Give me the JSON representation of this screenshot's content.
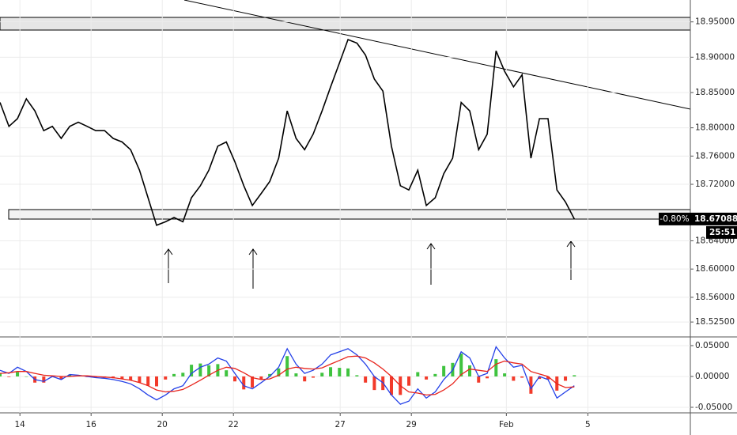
{
  "chart_data": [
    {
      "type": "line",
      "x": [
        -0.56,
        -0.31,
        -0.07,
        0.18,
        0.42,
        0.67,
        0.91,
        1.16,
        1.4,
        1.64,
        1.89,
        2.13,
        2.38,
        2.62,
        2.87,
        3.11,
        3.36,
        3.6,
        3.84,
        4.09,
        4.33,
        4.58,
        4.82,
        5.07,
        5.31,
        5.56,
        5.8,
        6.04,
        6.29,
        6.53,
        6.78,
        7.02,
        7.27,
        7.51,
        7.76,
        8.0,
        8.24,
        8.49,
        8.73,
        8.98,
        9.22,
        9.47,
        9.71,
        9.96,
        10.2,
        10.44,
        10.69,
        10.93,
        11.18,
        11.42,
        11.67,
        11.91,
        12.16,
        12.4,
        12.64,
        12.89,
        13.13,
        13.38,
        13.62,
        13.87,
        14.11,
        14.36,
        14.6,
        14.84,
        15.09,
        15.33,
        15.58
      ],
      "values": [
        18.836,
        18.802,
        18.813,
        18.841,
        18.824,
        18.796,
        18.802,
        18.785,
        18.802,
        18.808,
        18.802,
        18.796,
        18.796,
        18.785,
        18.78,
        18.769,
        18.74,
        18.701,
        18.662,
        18.667,
        18.673,
        18.667,
        18.701,
        18.718,
        18.74,
        18.774,
        18.78,
        18.752,
        18.718,
        18.69,
        18.707,
        18.724,
        18.757,
        18.824,
        18.785,
        18.769,
        18.791,
        18.824,
        18.858,
        18.892,
        18.925,
        18.92,
        18.903,
        18.869,
        18.852,
        18.774,
        18.718,
        18.712,
        18.74,
        18.69,
        18.701,
        18.735,
        18.757,
        18.836,
        18.824,
        18.769,
        18.791,
        18.909,
        18.88,
        18.858,
        18.875,
        18.757,
        18.813,
        18.813,
        18.712,
        18.695,
        18.67088
      ],
      "color": "#000000",
      "xlim": [
        -0.56,
        18.84
      ],
      "xticks": [
        {
          "value": 0,
          "label": "14"
        },
        {
          "value": 2,
          "label": "16"
        },
        {
          "value": 4,
          "label": "20"
        },
        {
          "value": 6,
          "label": "22"
        },
        {
          "value": 9,
          "label": "27"
        },
        {
          "value": 11,
          "label": "29"
        },
        {
          "value": 13.67,
          "label": "Feb"
        },
        {
          "value": 15.96,
          "label": "5"
        }
      ],
      "ylim": [
        18.505,
        18.981
      ],
      "yticks": [
        {
          "value": 18.95,
          "label": "18.95000"
        },
        {
          "value": 18.9,
          "label": "18.90000"
        },
        {
          "value": 18.85,
          "label": "18.85000"
        },
        {
          "value": 18.8,
          "label": "18.80000"
        },
        {
          "value": 18.76,
          "label": "18.76000"
        },
        {
          "value": 18.72,
          "label": "18.72000"
        },
        {
          "value": 18.64,
          "label": "18.64000"
        },
        {
          "value": 18.6,
          "label": "18.60000"
        },
        {
          "value": 18.56,
          "label": "18.56000"
        },
        {
          "value": 18.525,
          "label": "18.52500"
        }
      ],
      "grid": true,
      "last_price": 18.67088,
      "change_label": "-0.80%",
      "countdown": "25:51"
    },
    {
      "type": "macd",
      "x": [
        -0.56,
        -0.31,
        -0.07,
        0.18,
        0.42,
        0.67,
        0.91,
        1.16,
        1.4,
        1.64,
        1.89,
        2.13,
        2.38,
        2.62,
        2.87,
        3.11,
        3.36,
        3.6,
        3.84,
        4.09,
        4.33,
        4.58,
        4.82,
        5.07,
        5.31,
        5.56,
        5.8,
        6.04,
        6.29,
        6.53,
        6.78,
        7.02,
        7.27,
        7.51,
        7.76,
        8.0,
        8.24,
        8.49,
        8.73,
        8.98,
        9.22,
        9.47,
        9.71,
        9.96,
        10.2,
        10.44,
        10.69,
        10.93,
        11.18,
        11.42,
        11.67,
        11.91,
        12.16,
        12.4,
        12.64,
        12.89,
        13.13,
        13.38,
        13.62,
        13.87,
        14.11,
        14.36,
        14.6,
        14.84,
        15.09,
        15.33,
        15.58
      ],
      "series": [
        {
          "color": "#2340e8",
          "values": [
            0.01,
            0.005,
            0.015,
            0.008,
            -0.005,
            -0.008,
            0.0,
            -0.005,
            0.003,
            0.002,
            0.0,
            -0.002,
            -0.003,
            -0.005,
            -0.008,
            -0.012,
            -0.02,
            -0.03,
            -0.038,
            -0.03,
            -0.02,
            -0.015,
            0.005,
            0.015,
            0.02,
            0.03,
            0.025,
            0.005,
            -0.015,
            -0.02,
            -0.01,
            0.0,
            0.015,
            0.045,
            0.02,
            0.005,
            0.01,
            0.02,
            0.035,
            0.04,
            0.045,
            0.035,
            0.02,
            0.0,
            -0.01,
            -0.03,
            -0.045,
            -0.04,
            -0.02,
            -0.035,
            -0.025,
            -0.005,
            0.01,
            0.04,
            0.03,
            0.0,
            0.005,
            0.048,
            0.03,
            0.015,
            0.018,
            -0.02,
            0.0,
            -0.005,
            -0.035,
            -0.025,
            -0.015
          ]
        },
        {
          "color": "#e8241c",
          "values": [
            0.005,
            0.006,
            0.008,
            0.008,
            0.005,
            0.002,
            0.001,
            0.0,
            0.0,
            0.001,
            0.001,
            0.0,
            -0.001,
            -0.002,
            -0.004,
            -0.006,
            -0.01,
            -0.015,
            -0.022,
            -0.025,
            -0.024,
            -0.021,
            -0.014,
            -0.006,
            0.002,
            0.01,
            0.015,
            0.013,
            0.006,
            -0.002,
            -0.005,
            -0.004,
            0.002,
            0.012,
            0.015,
            0.013,
            0.012,
            0.014,
            0.02,
            0.026,
            0.032,
            0.033,
            0.03,
            0.022,
            0.012,
            0.0,
            -0.015,
            -0.025,
            -0.027,
            -0.03,
            -0.029,
            -0.022,
            -0.012,
            0.003,
            0.012,
            0.01,
            0.008,
            0.02,
            0.025,
            0.022,
            0.02,
            0.008,
            0.004,
            0.0,
            -0.012,
            -0.018,
            -0.017
          ]
        }
      ],
      "histogram": {
        "positive_color": "#3fc33f",
        "negative_color": "#f23a2a",
        "values": [
          0.005,
          -0.001,
          0.007,
          0.0,
          -0.01,
          -0.01,
          -0.001,
          -0.005,
          0.003,
          0.001,
          -0.001,
          -0.002,
          -0.002,
          -0.003,
          -0.004,
          -0.006,
          -0.01,
          -0.015,
          -0.016,
          -0.005,
          0.004,
          0.006,
          0.019,
          0.021,
          0.018,
          0.02,
          0.01,
          -0.008,
          -0.021,
          -0.018,
          -0.005,
          0.004,
          0.013,
          0.033,
          0.005,
          -0.008,
          -0.002,
          0.006,
          0.015,
          0.014,
          0.013,
          0.002,
          -0.01,
          -0.022,
          -0.022,
          -0.03,
          -0.03,
          -0.015,
          0.007,
          -0.005,
          0.004,
          0.017,
          0.022,
          0.037,
          0.018,
          -0.01,
          -0.003,
          0.028,
          0.005,
          -0.007,
          -0.002,
          -0.028,
          -0.004,
          -0.005,
          -0.023,
          -0.007,
          0.002
        ]
      },
      "xlim": [
        -0.56,
        18.84
      ],
      "ylim": [
        -0.059,
        0.0615
      ],
      "yticks": [
        {
          "value": 0.05,
          "label": "0.05000"
        },
        {
          "value": 0,
          "label": "0.00000"
        },
        {
          "value": -0.05,
          "label": "-0.05000"
        }
      ],
      "grid": true
    }
  ]
}
